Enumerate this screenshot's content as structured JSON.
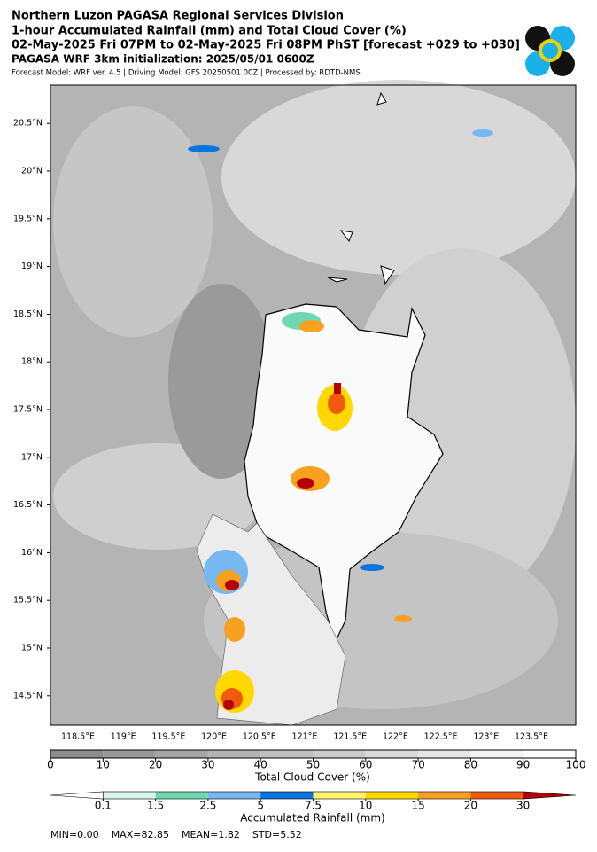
{
  "header": {
    "lines": [
      "Northern Luzon PAGASA Regional Services Division",
      "1-hour Accumulated Rainfall (mm) and Total Cloud Cover (%)",
      "02-May-2025 Fri 07PM to 02-May-2025 Fri 08PM PhST [forecast +029 to +030]"
    ],
    "init": "PAGASA WRF 3km initialization: 2025/05/01 0600Z",
    "model": "Forecast Model: WRF ver. 4.5 | Driving Model: GFS 20250501 00Z | Processed by: RDTD-NMS"
  },
  "map": {
    "lat_ticks": [
      {
        "value": 20.5,
        "label": "20.5°N"
      },
      {
        "value": 20,
        "label": "20°N"
      },
      {
        "value": 19.5,
        "label": "19.5°N"
      },
      {
        "value": 19,
        "label": "19°N"
      },
      {
        "value": 18.5,
        "label": "18.5°N"
      },
      {
        "value": 18,
        "label": "18°N"
      },
      {
        "value": 17.5,
        "label": "17.5°N"
      },
      {
        "value": 17,
        "label": "17°N"
      },
      {
        "value": 16.5,
        "label": "16.5°N"
      },
      {
        "value": 16,
        "label": "16°N"
      },
      {
        "value": 15.5,
        "label": "15.5°N"
      },
      {
        "value": 15,
        "label": "15°N"
      },
      {
        "value": 14.5,
        "label": "14.5°N"
      }
    ],
    "lon_ticks": [
      {
        "value": 118.5,
        "label": "118.5°E"
      },
      {
        "value": 119,
        "label": "119°E"
      },
      {
        "value": 119.5,
        "label": "119.5°E"
      },
      {
        "value": 120,
        "label": "120°E"
      },
      {
        "value": 120.5,
        "label": "120.5°E"
      },
      {
        "value": 121,
        "label": "121°E"
      },
      {
        "value": 121.5,
        "label": "121.5°E"
      },
      {
        "value": 122,
        "label": "122°E"
      },
      {
        "value": 122.5,
        "label": "122.5°E"
      },
      {
        "value": 123,
        "label": "123°E"
      },
      {
        "value": 123.5,
        "label": "123.5°E"
      }
    ]
  },
  "cloud_bar": {
    "title": "Total Cloud Cover (%)",
    "ticks": [
      0,
      10,
      20,
      30,
      40,
      50,
      60,
      70,
      80,
      90,
      100
    ],
    "colors": [
      "#8c8c8c",
      "#999999",
      "#a6a6a6",
      "#b3b3b3",
      "#c0c0c0",
      "#cccccc",
      "#d9d9d9",
      "#e6e6e6",
      "#f2f2f2",
      "#ffffff"
    ]
  },
  "rain_bar": {
    "title": "Accumulated Rainfall (mm)",
    "ticks": [
      0.1,
      1.5,
      2.5,
      5,
      7.5,
      10,
      15,
      20,
      30
    ],
    "colors": [
      "#d8f5ec",
      "#70d8b0",
      "#78b8f0",
      "#0a74e0",
      "#fff46a",
      "#ffd800",
      "#f8a020",
      "#f05a10"
    ],
    "under": "#ffffff",
    "over": "#b40000"
  },
  "stats": [
    "MIN=0.00",
    "MAX=82.85",
    "MEAN=1.82",
    "STD=5.52"
  ]
}
